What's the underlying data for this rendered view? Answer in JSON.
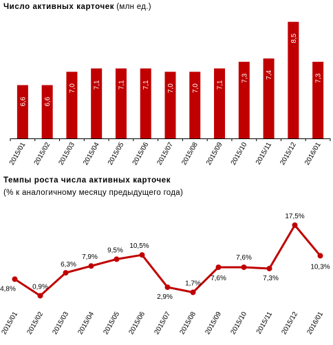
{
  "chart_data": [
    {
      "type": "bar",
      "title": "Число активных карточек",
      "subtitle": "(млн ед.)",
      "categories": [
        "2015/01",
        "2015/02",
        "2015/03",
        "2015/04",
        "2015/05",
        "2015/06",
        "2015/07",
        "2015/08",
        "2015/09",
        "2015/10",
        "2015/11",
        "2015/12",
        "2016/01"
      ],
      "values": [
        6.6,
        6.6,
        7.0,
        7.1,
        7.1,
        7.1,
        7.0,
        7.0,
        7.1,
        7.3,
        7.4,
        8.5,
        7.3
      ],
      "labels": [
        "6,6",
        "6,6",
        "7,0",
        "7,1",
        "7,1",
        "7,1",
        "7,0",
        "7,0",
        "7,1",
        "7,3",
        "7,4",
        "8,5",
        "7,3"
      ],
      "color": "#c00000",
      "ylim": [
        5.0,
        8.7
      ],
      "grid": false
    },
    {
      "type": "line",
      "title": "Темпы роста числа активных карточек",
      "subtitle": "(% к аналогичному месяцу предыдущего года)",
      "categories": [
        "2015/01",
        "2015/02",
        "2015/03",
        "2015/04",
        "2015/05",
        "2015/06",
        "2015/07",
        "2015/08",
        "2015/09",
        "2015/10",
        "2015/11",
        "2015/12",
        "2016/01"
      ],
      "values": [
        4.8,
        0.9,
        6.3,
        7.9,
        9.5,
        10.5,
        2.9,
        1.7,
        7.6,
        7.6,
        7.3,
        17.5,
        10.3
      ],
      "labels": [
        "4,8%",
        "0,9%",
        "6,3%",
        "7,9%",
        "9,5%",
        "10,5%",
        "2,9%",
        "1,7%",
        "7,6%",
        "7,6%",
        "7,3%",
        "17,5%",
        "10,3%"
      ],
      "color": "#c00000",
      "ylim": [
        0,
        18
      ],
      "grid": false
    }
  ]
}
